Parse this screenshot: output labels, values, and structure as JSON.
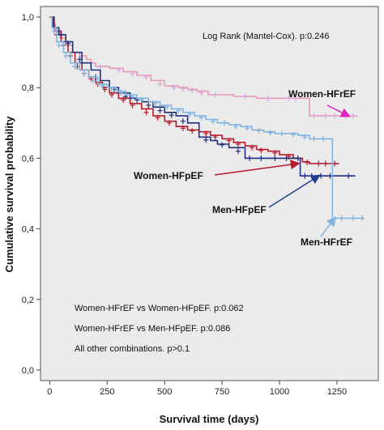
{
  "chart_data": {
    "type": "line",
    "title": "",
    "xlabel": "Survival time (days)",
    "ylabel": "Cumulative survival probability",
    "xlim": [
      -40,
      1430
    ],
    "ylim": [
      -0.03,
      1.03
    ],
    "xticks": [
      0,
      250,
      500,
      750,
      1000,
      1250
    ],
    "yticks": [
      0.0,
      0.2,
      0.4,
      0.6,
      0.8,
      1.0
    ],
    "ytick_labels": [
      "0,0",
      "0,2",
      "0,4",
      "0,6",
      "0,8",
      "1,0"
    ],
    "grid": false,
    "annotations": {
      "logrank": "Log Rank (Mantel-Cox). p:0.246",
      "comparisons": [
        "Women-HFrEF  vs Women-HFpEF.  p:0.062",
        "Women-HFrEF  vs Men-HFpEF.  p:0.086",
        "All other combinations. p>0.1"
      ]
    },
    "series": [
      {
        "name": "Women-HFrEF",
        "color": "#e79ab6",
        "censor_color": "#d7a4e2",
        "x": [
          0,
          10,
          25,
          45,
          70,
          100,
          130,
          160,
          180,
          200,
          260,
          320,
          380,
          440,
          500,
          560,
          600,
          640,
          690,
          800,
          900,
          1000,
          1090,
          1130,
          1200,
          1340
        ],
        "y": [
          1.0,
          0.98,
          0.96,
          0.94,
          0.92,
          0.9,
          0.89,
          0.88,
          0.87,
          0.86,
          0.855,
          0.845,
          0.835,
          0.82,
          0.805,
          0.8,
          0.795,
          0.79,
          0.78,
          0.775,
          0.77,
          0.77,
          0.77,
          0.72,
          0.72,
          0.72
        ],
        "censored": [
          [
            220,
            0.86
          ],
          [
            300,
            0.85
          ],
          [
            360,
            0.84
          ],
          [
            420,
            0.83
          ],
          [
            480,
            0.81
          ],
          [
            540,
            0.8
          ],
          [
            580,
            0.797
          ],
          [
            620,
            0.793
          ],
          [
            660,
            0.785
          ],
          [
            720,
            0.78
          ],
          [
            850,
            0.775
          ],
          [
            950,
            0.77
          ],
          [
            1040,
            0.77
          ],
          [
            1070,
            0.77
          ],
          [
            1150,
            0.72
          ],
          [
            1200,
            0.72
          ],
          [
            1240,
            0.72
          ],
          [
            1290,
            0.72
          ],
          [
            1320,
            0.72
          ]
        ]
      },
      {
        "name": "Women-HFpEF",
        "color": "#b71c2c",
        "censor_color": "#b71c2c",
        "x": [
          0,
          20,
          50,
          80,
          110,
          140,
          170,
          200,
          230,
          260,
          300,
          350,
          400,
          450,
          500,
          550,
          600,
          650,
          700,
          750,
          800,
          850,
          900,
          950,
          1000,
          1060,
          1100,
          1130,
          1150,
          1260
        ],
        "y": [
          1.0,
          0.96,
          0.93,
          0.9,
          0.87,
          0.85,
          0.83,
          0.815,
          0.8,
          0.785,
          0.77,
          0.755,
          0.74,
          0.72,
          0.705,
          0.69,
          0.68,
          0.675,
          0.665,
          0.655,
          0.645,
          0.635,
          0.625,
          0.62,
          0.61,
          0.6,
          0.59,
          0.585,
          0.585,
          0.585
        ],
        "censored": [
          [
            30,
            0.95
          ],
          [
            60,
            0.92
          ],
          [
            90,
            0.89
          ],
          [
            120,
            0.86
          ],
          [
            150,
            0.84
          ],
          [
            180,
            0.825
          ],
          [
            210,
            0.81
          ],
          [
            240,
            0.795
          ],
          [
            270,
            0.78
          ],
          [
            320,
            0.765
          ],
          [
            360,
            0.75
          ],
          [
            420,
            0.73
          ],
          [
            470,
            0.715
          ],
          [
            520,
            0.7
          ],
          [
            580,
            0.685
          ],
          [
            620,
            0.678
          ],
          [
            680,
            0.67
          ],
          [
            720,
            0.66
          ],
          [
            780,
            0.65
          ],
          [
            820,
            0.64
          ],
          [
            880,
            0.63
          ],
          [
            920,
            0.622
          ],
          [
            980,
            0.615
          ],
          [
            1040,
            0.605
          ],
          [
            1120,
            0.588
          ],
          [
            1170,
            0.585
          ],
          [
            1200,
            0.585
          ],
          [
            1240,
            0.585
          ]
        ]
      },
      {
        "name": "Men-HFpEF",
        "color": "#1f2f7f",
        "censor_color": "#1f2f7f",
        "x": [
          0,
          15,
          40,
          70,
          100,
          140,
          180,
          220,
          260,
          300,
          350,
          400,
          450,
          500,
          550,
          600,
          650,
          700,
          730,
          780,
          850,
          950,
          1050,
          1090,
          1120,
          1160,
          1250,
          1330
        ],
        "y": [
          1.0,
          0.97,
          0.95,
          0.93,
          0.9,
          0.87,
          0.85,
          0.82,
          0.8,
          0.785,
          0.77,
          0.76,
          0.745,
          0.73,
          0.72,
          0.7,
          0.66,
          0.65,
          0.64,
          0.63,
          0.6,
          0.6,
          0.6,
          0.55,
          0.55,
          0.55,
          0.55,
          0.55
        ],
        "censored": [
          [
            20,
            0.97
          ],
          [
            50,
            0.95
          ],
          [
            80,
            0.925
          ],
          [
            130,
            0.88
          ],
          [
            200,
            0.83
          ],
          [
            280,
            0.795
          ],
          [
            330,
            0.775
          ],
          [
            380,
            0.765
          ],
          [
            430,
            0.75
          ],
          [
            480,
            0.735
          ],
          [
            530,
            0.722
          ],
          [
            580,
            0.705
          ],
          [
            680,
            0.652
          ],
          [
            750,
            0.638
          ],
          [
            820,
            0.62
          ],
          [
            870,
            0.6
          ],
          [
            920,
            0.6
          ],
          [
            980,
            0.6
          ],
          [
            1030,
            0.6
          ],
          [
            1080,
            0.6
          ],
          [
            1110,
            0.55
          ],
          [
            1140,
            0.55
          ],
          [
            1180,
            0.55
          ],
          [
            1220,
            0.55
          ],
          [
            1300,
            0.55
          ]
        ]
      },
      {
        "name": "Men-HFrEF",
        "color": "#7fb3e0",
        "censor_color": "#7fb3e0",
        "x": [
          0,
          10,
          30,
          60,
          90,
          130,
          170,
          210,
          250,
          290,
          330,
          380,
          430,
          480,
          530,
          580,
          630,
          680,
          730,
          780,
          830,
          880,
          930,
          980,
          1030,
          1080,
          1130,
          1180,
          1210,
          1230,
          1370
        ],
        "y": [
          1.0,
          0.97,
          0.93,
          0.9,
          0.87,
          0.85,
          0.83,
          0.81,
          0.8,
          0.79,
          0.78,
          0.77,
          0.76,
          0.75,
          0.74,
          0.73,
          0.72,
          0.71,
          0.7,
          0.695,
          0.69,
          0.68,
          0.675,
          0.67,
          0.67,
          0.665,
          0.655,
          0.655,
          0.655,
          0.43,
          0.43
        ],
        "censored": [
          [
            20,
            0.96
          ],
          [
            40,
            0.92
          ],
          [
            70,
            0.89
          ],
          [
            110,
            0.86
          ],
          [
            150,
            0.84
          ],
          [
            190,
            0.82
          ],
          [
            230,
            0.805
          ],
          [
            270,
            0.795
          ],
          [
            310,
            0.785
          ],
          [
            360,
            0.775
          ],
          [
            400,
            0.765
          ],
          [
            460,
            0.755
          ],
          [
            510,
            0.745
          ],
          [
            560,
            0.735
          ],
          [
            610,
            0.725
          ],
          [
            660,
            0.715
          ],
          [
            710,
            0.705
          ],
          [
            760,
            0.7
          ],
          [
            810,
            0.69
          ],
          [
            860,
            0.685
          ],
          [
            910,
            0.678
          ],
          [
            960,
            0.672
          ],
          [
            1010,
            0.67
          ],
          [
            1060,
            0.667
          ],
          [
            1110,
            0.66
          ],
          [
            1150,
            0.655
          ],
          [
            1190,
            0.655
          ],
          [
            1270,
            0.43
          ],
          [
            1320,
            0.43
          ],
          [
            1360,
            0.43
          ]
        ]
      }
    ],
    "callouts": [
      {
        "label": "Women-HFrEF",
        "series": "Women-HFrEF",
        "arrow_color": "#e020c0",
        "target": [
          1300,
          0.72
        ]
      },
      {
        "label": "Women-HFpEF",
        "series": "Women-HFpEF",
        "arrow_color": "#b71c2c",
        "target": [
          1080,
          0.585
        ]
      },
      {
        "label": "Men-HFpEF",
        "series": "Men-HFpEF",
        "arrow_color": "#1f3f8f",
        "target": [
          1170,
          0.55
        ]
      },
      {
        "label": "Men-HFrEF",
        "series": "Men-HFrEF",
        "arrow_color": "#7fb3e0",
        "target": [
          1240,
          0.43
        ]
      }
    ]
  }
}
